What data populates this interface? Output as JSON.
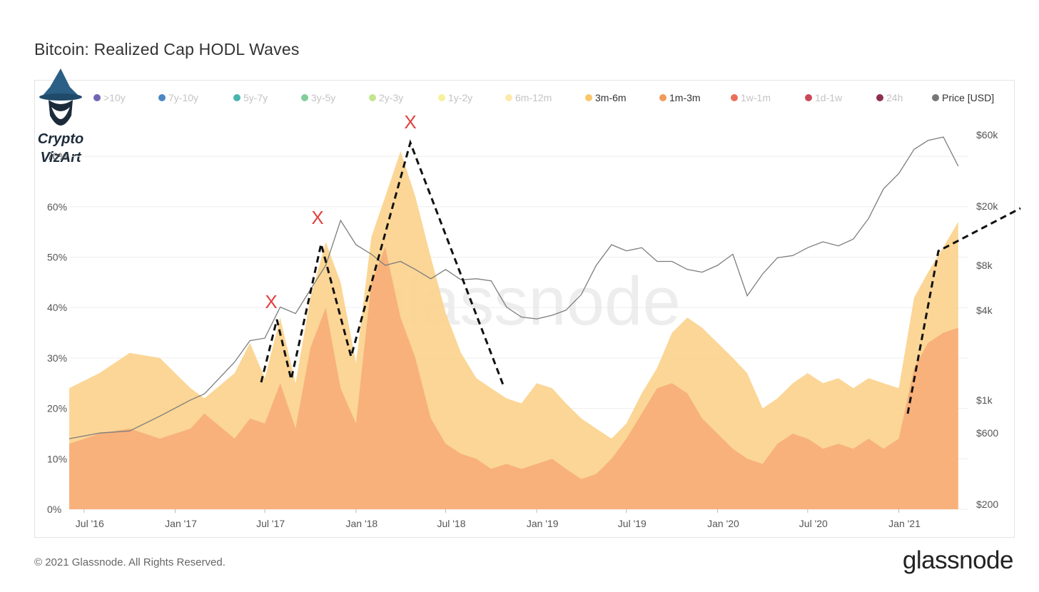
{
  "header": {
    "title": "Bitcoin: Realized Cap HODL Waves"
  },
  "footer": {
    "copyright": "© 2021 Glassnode. All Rights Reserved.",
    "brand": "glassnode"
  },
  "watermark": {
    "text": "glassnode"
  },
  "logo": {
    "line1": "Crypto",
    "line2": "VizArt",
    "icon": "wizard-icon"
  },
  "colors": {
    "band_3m_6m": "#fbd38d",
    "band_1m_3m": "#f7ae78",
    "price_line": "#7d7d7d",
    "markers": "#e0413f",
    "trend": "#111111"
  },
  "legend": [
    {
      "label": ">10y",
      "color": "#5b4aa8",
      "active": false
    },
    {
      "label": "7y-10y",
      "color": "#2f72b8",
      "active": false
    },
    {
      "label": "5y-7y",
      "color": "#27a8a0",
      "active": false
    },
    {
      "label": "3y-5y",
      "color": "#6cc58a",
      "active": false
    },
    {
      "label": "2y-3y",
      "color": "#b8e07a",
      "active": false
    },
    {
      "label": "1y-2y",
      "color": "#f2ee8a",
      "active": false
    },
    {
      "label": "6m-12m",
      "color": "#fde59a",
      "active": false
    },
    {
      "label": "3m-6m",
      "color": "#fbc66a",
      "active": true
    },
    {
      "label": "1m-3m",
      "color": "#f39a5a",
      "active": true
    },
    {
      "label": "1w-1m",
      "color": "#e5563e",
      "active": false
    },
    {
      "label": "1d-1w",
      "color": "#c2283c",
      "active": false
    },
    {
      "label": "24h",
      "color": "#7a0a2e",
      "active": false
    },
    {
      "label": "Price [USD]",
      "color": "#777777",
      "active": true
    }
  ],
  "chart_data": {
    "type": "area",
    "title": "Bitcoin: Realized Cap HODL Waves",
    "x_ticks": [
      "Jul '16",
      "Jan '17",
      "Jul '17",
      "Jan '18",
      "Jul '18",
      "Jan '19",
      "Jul '19",
      "Jan '20",
      "Jul '20",
      "Jan '21"
    ],
    "y_left_ticks": [
      "0%",
      "10%",
      "20%",
      "30%",
      "40%",
      "50%",
      "60%",
      "70%"
    ],
    "y_left_range": [
      0,
      70
    ],
    "y_right_ticks": [
      "$200",
      "$600",
      "$1k",
      "$4k",
      "$8k",
      "$20k",
      "$60k"
    ],
    "y_right_scale": "log",
    "grid": true,
    "legend_position": "top",
    "series": [
      {
        "name": "3m-6m",
        "stacked": true,
        "x": [
          "2016-06",
          "2016-08",
          "2016-10",
          "2016-12",
          "2017-02",
          "2017-03",
          "2017-05",
          "2017-06",
          "2017-07",
          "2017-08",
          "2017-09",
          "2017-10",
          "2017-11",
          "2017-12",
          "2018-01",
          "2018-02",
          "2018-03",
          "2018-04",
          "2018-05",
          "2018-06",
          "2018-07",
          "2018-08",
          "2018-09",
          "2018-10",
          "2018-11",
          "2018-12",
          "2019-01",
          "2019-02",
          "2019-03",
          "2019-04",
          "2019-05",
          "2019-06",
          "2019-07",
          "2019-08",
          "2019-09",
          "2019-10",
          "2019-11",
          "2019-12",
          "2020-01",
          "2020-02",
          "2020-03",
          "2020-04",
          "2020-05",
          "2020-06",
          "2020-07",
          "2020-08",
          "2020-09",
          "2020-10",
          "2020-11",
          "2020-12",
          "2021-01",
          "2021-02",
          "2021-03",
          "2021-04",
          "2021-05"
        ],
        "values": [
          24,
          27,
          31,
          30,
          24,
          22,
          27,
          33,
          26,
          38,
          25,
          42,
          53,
          45,
          29,
          54,
          62,
          71,
          62,
          50,
          39,
          31,
          26,
          24,
          22,
          21,
          25,
          24,
          21,
          18,
          16,
          14,
          17,
          23,
          28,
          35,
          38,
          36,
          33,
          30,
          27,
          20,
          22,
          25,
          27,
          25,
          26,
          24,
          26,
          25,
          24,
          42,
          47,
          52,
          57
        ]
      },
      {
        "name": "1m-3m",
        "stacked": true,
        "x": [
          "2016-06",
          "2016-08",
          "2016-10",
          "2016-12",
          "2017-02",
          "2017-03",
          "2017-05",
          "2017-06",
          "2017-07",
          "2017-08",
          "2017-09",
          "2017-10",
          "2017-11",
          "2017-12",
          "2018-01",
          "2018-02",
          "2018-03",
          "2018-04",
          "2018-05",
          "2018-06",
          "2018-07",
          "2018-08",
          "2018-09",
          "2018-10",
          "2018-11",
          "2018-12",
          "2019-01",
          "2019-02",
          "2019-03",
          "2019-04",
          "2019-05",
          "2019-06",
          "2019-07",
          "2019-08",
          "2019-09",
          "2019-10",
          "2019-11",
          "2019-12",
          "2020-01",
          "2020-02",
          "2020-03",
          "2020-04",
          "2020-05",
          "2020-06",
          "2020-07",
          "2020-08",
          "2020-09",
          "2020-10",
          "2020-11",
          "2020-12",
          "2021-01",
          "2021-02",
          "2021-03",
          "2021-04",
          "2021-05"
        ],
        "values": [
          13,
          15,
          16,
          14,
          16,
          19,
          14,
          18,
          17,
          25,
          16,
          32,
          40,
          24,
          17,
          45,
          52,
          38,
          30,
          18,
          13,
          11,
          10,
          8,
          9,
          8,
          9,
          10,
          8,
          6,
          7,
          10,
          14,
          19,
          24,
          25,
          23,
          18,
          15,
          12,
          10,
          9,
          13,
          15,
          14,
          12,
          13,
          12,
          14,
          12,
          14,
          28,
          33,
          35,
          36
        ]
      },
      {
        "name": "Price [USD]",
        "axis": "right",
        "x": [
          "2016-06",
          "2016-08",
          "2016-10",
          "2016-12",
          "2017-02",
          "2017-03",
          "2017-05",
          "2017-06",
          "2017-07",
          "2017-08",
          "2017-09",
          "2017-10",
          "2017-11",
          "2017-12",
          "2018-01",
          "2018-02",
          "2018-03",
          "2018-04",
          "2018-05",
          "2018-06",
          "2018-07",
          "2018-08",
          "2018-09",
          "2018-10",
          "2018-11",
          "2018-12",
          "2019-01",
          "2019-02",
          "2019-03",
          "2019-04",
          "2019-05",
          "2019-06",
          "2019-07",
          "2019-08",
          "2019-09",
          "2019-10",
          "2019-11",
          "2019-12",
          "2020-01",
          "2020-02",
          "2020-03",
          "2020-04",
          "2020-05",
          "2020-06",
          "2020-07",
          "2020-08",
          "2020-09",
          "2020-10",
          "2020-11",
          "2020-12",
          "2021-01",
          "2021-02",
          "2021-03",
          "2021-04",
          "2021-05"
        ],
        "values": [
          550,
          600,
          620,
          780,
          1000,
          1100,
          1800,
          2500,
          2600,
          4200,
          3800,
          5500,
          8000,
          16000,
          11000,
          9500,
          8000,
          8500,
          7500,
          6500,
          7500,
          6400,
          6500,
          6300,
          4200,
          3600,
          3500,
          3700,
          4000,
          5100,
          8000,
          11000,
          10000,
          10500,
          8500,
          8500,
          7500,
          7200,
          8000,
          9500,
          5000,
          7000,
          9000,
          9300,
          10500,
          11500,
          10800,
          12000,
          16500,
          26000,
          33000,
          48000,
          55000,
          58000,
          37000
        ]
      }
    ],
    "annotations": [
      {
        "type": "marker",
        "label": "X",
        "date": "2017-06"
      },
      {
        "type": "marker",
        "label": "X",
        "date": "2017-11"
      },
      {
        "type": "marker",
        "label": "X",
        "date": "2018-04"
      }
    ]
  }
}
